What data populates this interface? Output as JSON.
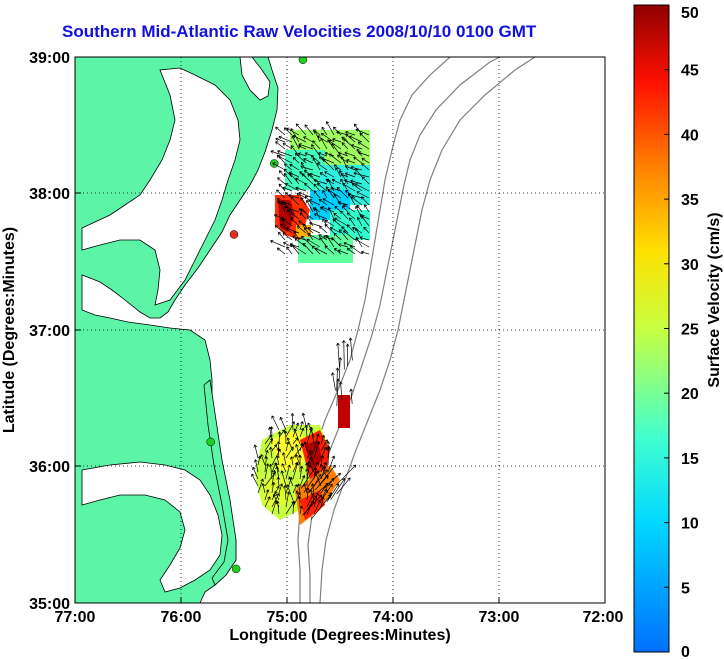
{
  "title": "Southern Mid-Atlantic Raw Velocities 2008/10/10 0100 GMT",
  "map": {
    "xlabel": "Longitude (Degrees:Minutes)",
    "ylabel": "Latitude (Degrees:Minutes)",
    "x_ticks": [
      "77:00",
      "76:00",
      "75:00",
      "74:00",
      "73:00",
      "72:00"
    ],
    "y_ticks": [
      "39:00",
      "38:00",
      "37:00",
      "36:00",
      "35:00"
    ],
    "lon_range": [
      -77,
      -72
    ],
    "lat_range": [
      35,
      39
    ],
    "land_color": "#5cf5a8",
    "water_color": "#ffffff",
    "gridlines": "dotted"
  },
  "colorbar": {
    "label": "Surface Velocity (cm/s)",
    "min": 0,
    "max": 50,
    "ticks": [
      "0",
      "5",
      "10",
      "15",
      "20",
      "25",
      "30",
      "35",
      "40",
      "45",
      "50"
    ],
    "colormap": "jet"
  },
  "stations": [
    {
      "lon": -74.85,
      "lat": 38.98,
      "color": "#20d020"
    },
    {
      "lon": -75.12,
      "lat": 38.22,
      "color": "#20d020"
    },
    {
      "lon": -75.5,
      "lat": 37.7,
      "color": "#e03020"
    },
    {
      "lon": -75.72,
      "lat": 36.18,
      "color": "#20d020"
    },
    {
      "lon": -75.48,
      "lat": 35.25,
      "color": "#20d020"
    }
  ]
}
